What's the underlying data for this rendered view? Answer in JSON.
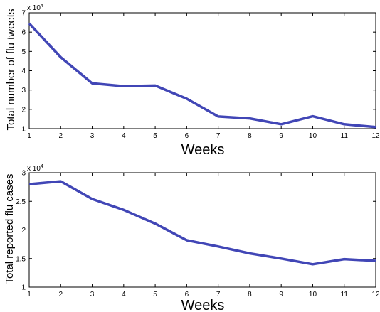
{
  "chart_data": [
    {
      "type": "line",
      "xlabel": "Weeks",
      "ylabel": "Total number of flu tweets",
      "exponent_label": "x 10",
      "exponent_power": "4",
      "xlim": [
        1,
        12
      ],
      "ylim": [
        10000,
        70000
      ],
      "xticks": [
        "1",
        "2",
        "3",
        "4",
        "5",
        "6",
        "7",
        "8",
        "9",
        "10",
        "11",
        "12"
      ],
      "yticks": [
        "1",
        "2",
        "3",
        "4",
        "5",
        "6",
        "7"
      ],
      "ytick_values": [
        10000,
        20000,
        30000,
        40000,
        50000,
        60000,
        70000
      ],
      "grid": false,
      "line_color": "#4146b6",
      "series": [
        {
          "x": [
            1,
            2,
            3,
            4,
            5,
            6,
            7,
            8,
            9,
            10,
            11,
            12
          ],
          "values": [
            64500,
            47000,
            33500,
            32000,
            32300,
            25500,
            16300,
            15300,
            12300,
            16400,
            12300,
            10800
          ]
        }
      ]
    },
    {
      "type": "line",
      "xlabel": "Weeks",
      "ylabel": "Total reported flu cases",
      "exponent_label": "x 10",
      "exponent_power": "4",
      "xlim": [
        1,
        12
      ],
      "ylim": [
        10000,
        30000
      ],
      "xticks": [
        "1",
        "2",
        "3",
        "4",
        "5",
        "6",
        "7",
        "8",
        "9",
        "10",
        "11",
        "12"
      ],
      "yticks": [
        "1",
        "1.5",
        "2",
        "2.5",
        "3"
      ],
      "ytick_values": [
        10000,
        15000,
        20000,
        25000,
        30000
      ],
      "grid": false,
      "line_color": "#4146b6",
      "series": [
        {
          "x": [
            1,
            2,
            3,
            4,
            5,
            6,
            7,
            8,
            9,
            10,
            11,
            12
          ],
          "values": [
            28000,
            28500,
            25400,
            23500,
            21100,
            18200,
            17100,
            15900,
            15000,
            14000,
            14900,
            14600
          ]
        }
      ]
    }
  ]
}
